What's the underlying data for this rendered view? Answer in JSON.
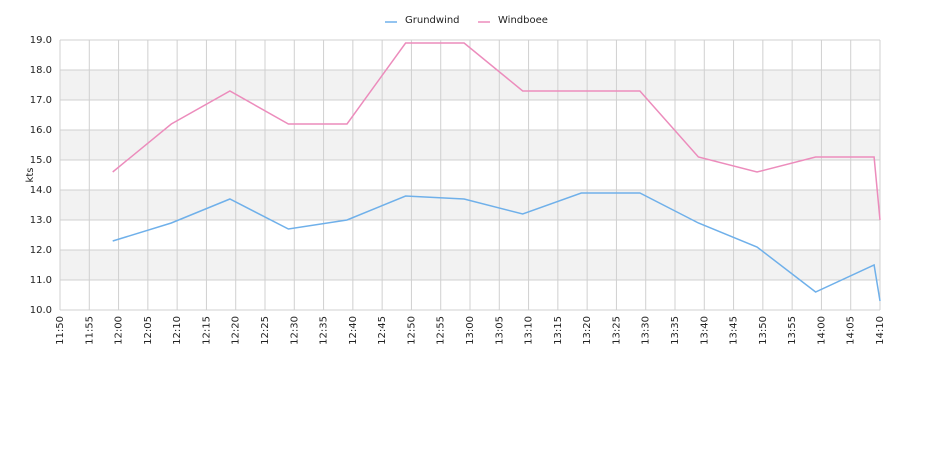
{
  "chart_data": {
    "type": "line",
    "y_label": "kts",
    "x": [
      "11:59",
      "12:09",
      "12:19",
      "12:29",
      "12:39",
      "12:49",
      "12:59",
      "13:09",
      "13:19",
      "13:29",
      "13:39",
      "13:49",
      "13:59",
      "14:09",
      "14:10"
    ],
    "series": [
      {
        "name": "Grundwind",
        "color": "#6fb0ea",
        "values": [
          12.3,
          12.9,
          13.7,
          12.7,
          13.0,
          13.8,
          13.7,
          13.2,
          13.9,
          13.9,
          12.9,
          12.1,
          10.6,
          11.5,
          10.3
        ]
      },
      {
        "name": "Windboee",
        "color": "#ec8cbc",
        "values": [
          14.6,
          16.2,
          17.3,
          16.2,
          16.2,
          18.9,
          18.9,
          17.3,
          17.3,
          17.3,
          15.1,
          14.6,
          15.1,
          15.1,
          13.0
        ]
      }
    ],
    "xlim": [
      "11:50",
      "14:10"
    ],
    "xticks": [
      "11:50",
      "11:55",
      "12:00",
      "12:05",
      "12:10",
      "12:15",
      "12:20",
      "12:25",
      "12:30",
      "12:35",
      "12:40",
      "12:45",
      "12:50",
      "12:55",
      "13:00",
      "13:05",
      "13:10",
      "13:15",
      "13:20",
      "13:25",
      "13:30",
      "13:35",
      "13:40",
      "13:45",
      "13:50",
      "13:55",
      "14:00",
      "14:05",
      "14:10"
    ],
    "ylim": [
      10,
      19
    ],
    "yticks": [
      {
        "value": 10,
        "label": "10.0"
      },
      {
        "value": 11,
        "label": "11.0"
      },
      {
        "value": 12,
        "label": "12.0"
      },
      {
        "value": 13,
        "label": "13.0"
      },
      {
        "value": 14,
        "label": "14.0"
      },
      {
        "value": 15,
        "label": "15.0"
      },
      {
        "value": 16,
        "label": "16.0"
      },
      {
        "value": 17,
        "label": "17.0"
      },
      {
        "value": 18,
        "label": "18.0"
      },
      {
        "value": 19,
        "label": "19.0"
      }
    ],
    "grid": true,
    "legend": "top"
  }
}
